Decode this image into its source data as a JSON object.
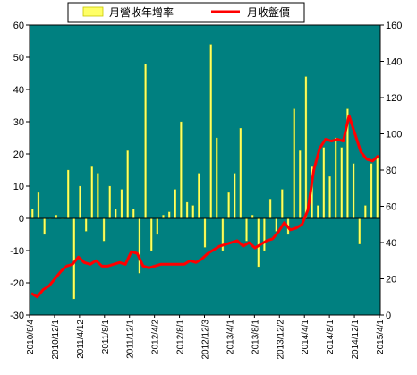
{
  "chart_data": {
    "type": "bar+line",
    "legend": {
      "placement": "top",
      "items": [
        {
          "label": "月營收年增率",
          "kind": "bar",
          "color": "#ffff66"
        },
        {
          "label": "月收盤價",
          "kind": "line",
          "color": "#ff0000"
        }
      ]
    },
    "background_color": "#008080",
    "grid": false,
    "y_left": {
      "min": -30,
      "max": 60,
      "ticks": [
        60,
        50,
        40,
        30,
        20,
        10,
        0,
        -10,
        -20,
        -30
      ]
    },
    "y_right": {
      "min": 0,
      "max": 160,
      "ticks": [
        160,
        140,
        120,
        100,
        80,
        60,
        40,
        20,
        0
      ]
    },
    "x_tick_labels": [
      "2010/8/4",
      "2010/12/1",
      "2011/4/12",
      "2011/8/1",
      "2011/12/1",
      "2012/4/2",
      "2012/8/1",
      "2012/12/3",
      "2013/4/1",
      "2013/8/1",
      "2013/12/2",
      "2014/4/1",
      "2014/8/1",
      "2014/12/1",
      "2015/4/1"
    ],
    "series": [
      {
        "name": "月營收年增率",
        "type": "bar",
        "axis": "left",
        "color": "#ffff66",
        "values": [
          3,
          8,
          -5,
          0,
          1,
          0,
          15,
          -25,
          10,
          -4,
          16,
          14,
          -7,
          10,
          3,
          9,
          21,
          3,
          -17,
          48,
          -10,
          -5,
          1,
          2,
          9,
          30,
          5,
          4,
          14,
          -9,
          54,
          25,
          -10,
          8,
          14,
          28,
          -7,
          1,
          -15,
          -10,
          6,
          -4,
          9,
          -5,
          34,
          21,
          44,
          16,
          4,
          22,
          13,
          25,
          22,
          34,
          17,
          -8,
          4,
          17,
          19
        ]
      },
      {
        "name": "月收盤價",
        "type": "line",
        "axis": "right",
        "color": "#ff0000",
        "values": [
          12,
          10,
          14,
          16,
          20,
          24,
          27,
          28,
          32,
          29,
          28,
          30,
          27,
          27,
          28,
          29,
          28,
          35,
          34,
          27,
          26,
          27,
          28,
          28,
          28,
          28,
          28,
          30,
          29,
          31,
          34,
          36,
          38,
          39,
          40,
          41,
          38,
          40,
          37,
          39,
          41,
          42,
          46,
          51,
          47,
          48,
          50,
          58,
          80,
          92,
          97,
          96,
          97,
          96,
          110,
          100,
          90,
          86,
          85,
          88
        ]
      }
    ]
  }
}
